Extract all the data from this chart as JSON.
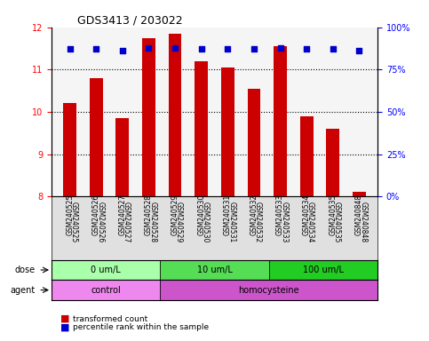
{
  "title": "GDS3413 / 203022",
  "samples": [
    "GSM240525",
    "GSM240526",
    "GSM240527",
    "GSM240528",
    "GSM240529",
    "GSM240530",
    "GSM240531",
    "GSM240532",
    "GSM240533",
    "GSM240534",
    "GSM240535",
    "GSM240848"
  ],
  "bar_values": [
    10.2,
    10.8,
    9.85,
    11.75,
    11.85,
    11.2,
    11.05,
    10.55,
    11.55,
    9.9,
    9.6,
    8.1
  ],
  "percentile_values": [
    87,
    87,
    86,
    88,
    88,
    87,
    87,
    87,
    88,
    87,
    87,
    86
  ],
  "bar_color": "#cc0000",
  "percentile_color": "#0000cc",
  "ylim_left": [
    8,
    12
  ],
  "ylim_right": [
    0,
    100
  ],
  "yticks_left": [
    8,
    9,
    10,
    11,
    12
  ],
  "yticks_right": [
    0,
    25,
    50,
    75,
    100
  ],
  "ytick_labels_right": [
    "0%",
    "25%",
    "50%",
    "75%",
    "100%"
  ],
  "dose_groups": [
    {
      "label": "0 um/L",
      "start": 0,
      "end": 4,
      "color": "#aaffaa"
    },
    {
      "label": "10 um/L",
      "start": 4,
      "end": 8,
      "color": "#55dd55"
    },
    {
      "label": "100 um/L",
      "start": 8,
      "end": 12,
      "color": "#22cc22"
    }
  ],
  "agent_groups": [
    {
      "label": "control",
      "start": 0,
      "end": 4,
      "color": "#ee88ee"
    },
    {
      "label": "homocysteine",
      "start": 4,
      "end": 12,
      "color": "#cc55cc"
    }
  ],
  "dose_label": "dose",
  "agent_label": "agent",
  "legend_bar": "transformed count",
  "legend_percentile": "percentile rank within the sample",
  "bg_color": "#ffffff",
  "plot_bg_color": "#f5f5f5",
  "label_area_bg": "#e0e0e0",
  "bar_bottom": 8.0
}
